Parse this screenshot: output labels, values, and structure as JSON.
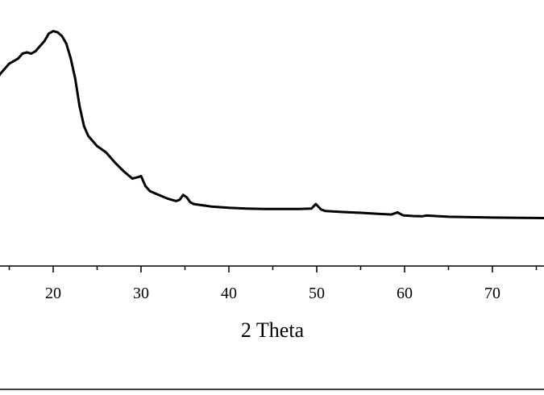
{
  "chart_data": {
    "type": "line",
    "title": "",
    "xlabel": "2 Theta",
    "ylabel": "",
    "xlim": [
      13,
      76
    ],
    "ylim": [
      0,
      100
    ],
    "grid": false,
    "x_ticks": [
      20,
      30,
      40,
      50,
      60,
      70
    ],
    "x_tick_labels": [
      "20",
      "30",
      "40",
      "50",
      "60",
      "70"
    ],
    "series": [
      {
        "color": "#000000",
        "x": [
          13,
          14,
          15,
          16,
          16.5,
          17,
          17.5,
          18,
          19,
          19.5,
          20,
          20.5,
          21,
          21.5,
          22,
          22.5,
          23,
          23.5,
          24,
          25,
          26,
          27,
          28,
          29,
          29.6,
          30,
          30.5,
          31,
          32,
          33,
          34,
          34.4,
          34.8,
          35.2,
          35.6,
          36,
          38,
          40,
          42,
          44,
          46,
          48,
          49.4,
          49.9,
          50.5,
          51,
          53,
          55,
          57,
          58.5,
          59.2,
          59.8,
          61,
          62,
          62.5,
          65,
          70,
          76
        ],
        "y": [
          72,
          77,
          81,
          83,
          85,
          85.5,
          85,
          86,
          90,
          93,
          94,
          93.5,
          92,
          89,
          83,
          75,
          64,
          56,
          52,
          48,
          45.5,
          41.5,
          38,
          35,
          35.5,
          36,
          32,
          30,
          28.5,
          27,
          26,
          26.5,
          28.5,
          27.5,
          25.5,
          24.8,
          23.8,
          23.3,
          23,
          22.8,
          22.8,
          22.8,
          23,
          24.8,
          22.6,
          22,
          21.6,
          21.3,
          20.9,
          20.6,
          21.5,
          20.3,
          20,
          19.9,
          20.2,
          19.7,
          19.4,
          19.2
        ]
      }
    ]
  }
}
